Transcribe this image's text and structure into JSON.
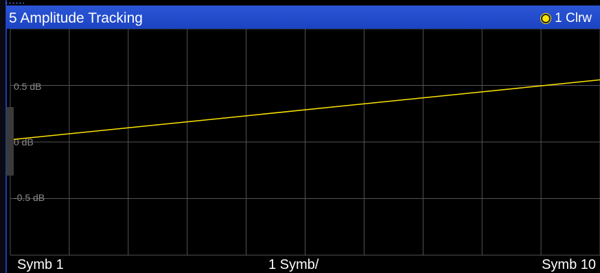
{
  "window": {
    "title": "5 Amplitude Tracking",
    "trace_label": "1 Clrw",
    "trace_color": "#ffe600",
    "header_color": "#2c56d6"
  },
  "chart_data": {
    "type": "line",
    "title": "5 Amplitude Tracking",
    "xlabel": "",
    "ylabel": "",
    "y_ticks": [
      {
        "value": 0.5,
        "label": "0.5 dB"
      },
      {
        "value": 0,
        "label": "0 dB"
      },
      {
        "value": -0.5,
        "label": "-0.5 dB"
      }
    ],
    "ylim": [
      -1.02,
      1.02
    ],
    "xlim": [
      1,
      10
    ],
    "x_labels": {
      "start": "Symb 1",
      "center": "1 Symb/",
      "end": "Symb 10"
    },
    "grid": true,
    "series": [
      {
        "name": "1 Clrw",
        "color": "#ffe600",
        "x": [
          1,
          10
        ],
        "y": [
          0.02,
          0.56
        ]
      }
    ]
  }
}
